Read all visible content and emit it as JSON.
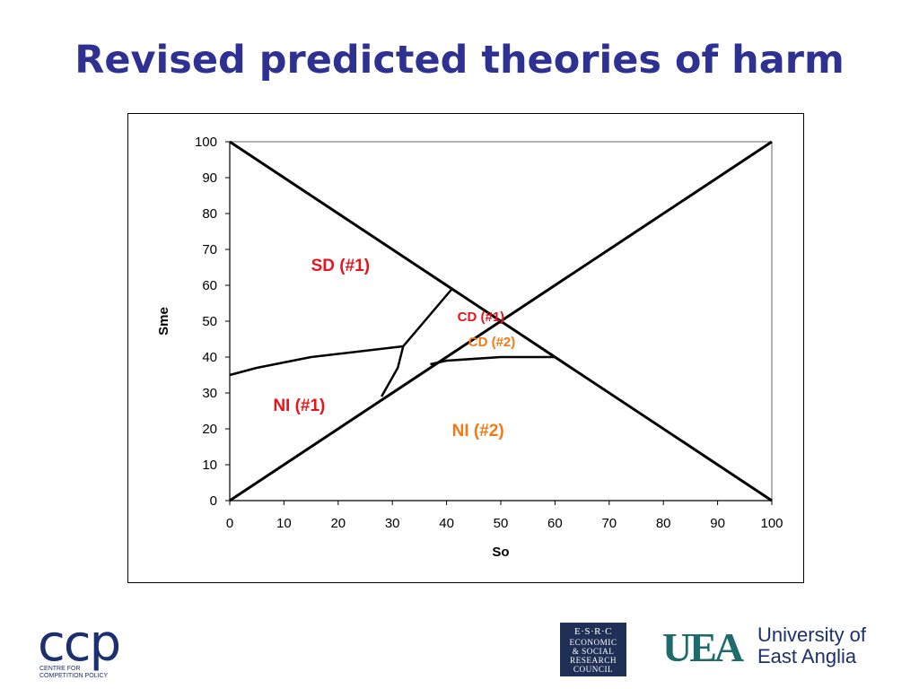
{
  "title": "Revised predicted theories of harm",
  "chart_data": {
    "type": "line",
    "xlabel": "So",
    "ylabel": "Sme",
    "xlim": [
      0,
      100
    ],
    "ylim": [
      0,
      100
    ],
    "x_ticks": [
      0,
      10,
      20,
      30,
      40,
      50,
      60,
      70,
      80,
      90,
      100
    ],
    "y_ticks": [
      0,
      10,
      20,
      30,
      40,
      50,
      60,
      70,
      80,
      90,
      100
    ],
    "grid": false,
    "lines": [
      {
        "points": [
          [
            0,
            100
          ],
          [
            100,
            0
          ]
        ]
      },
      {
        "points": [
          [
            0,
            0
          ],
          [
            100,
            100
          ]
        ]
      },
      {
        "points": [
          [
            0,
            35
          ],
          [
            5,
            37
          ],
          [
            15,
            40
          ],
          [
            32,
            43
          ]
        ]
      },
      {
        "points": [
          [
            41,
            59
          ],
          [
            32,
            43
          ],
          [
            31,
            37
          ],
          [
            28,
            29
          ]
        ]
      },
      {
        "points": [
          [
            37,
            38
          ],
          [
            40,
            39
          ],
          [
            50,
            40
          ],
          [
            60,
            40
          ]
        ]
      }
    ],
    "annotations": [
      {
        "text": "SD (#1)",
        "x": 15,
        "y": 64,
        "color": "#e8141c",
        "size": "large"
      },
      {
        "text": "CD (#1)",
        "x": 42,
        "y": 50,
        "color": "#e8141c",
        "size": "small"
      },
      {
        "text": "CD (#2)",
        "x": 44,
        "y": 43,
        "color": "#f07b16",
        "size": "small"
      },
      {
        "text": "NI (#1)",
        "x": 8,
        "y": 25,
        "color": "#e8141c",
        "size": "large"
      },
      {
        "text": "NI (#2)",
        "x": 41,
        "y": 18,
        "color": "#f07b16",
        "size": "large"
      }
    ]
  },
  "logos": {
    "ccp": {
      "letters": "ccp",
      "subtitle_line1": "CENTRE FOR",
      "subtitle_line2": "COMPETITION POLICY"
    },
    "esrc": {
      "line1": "E·S·R·C",
      "line2": "ECONOMIC",
      "line3": "& SOCIAL",
      "line4": "RESEARCH",
      "line5": "COUNCIL"
    },
    "uea": {
      "mark": "UEA",
      "name_line1": "University of",
      "name_line2": "East Anglia"
    }
  }
}
